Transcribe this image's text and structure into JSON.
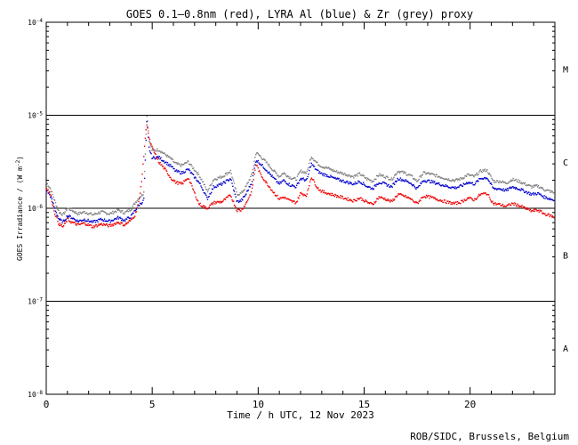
{
  "chart_data": {
    "type": "line",
    "title": "GOES 0.1—0.8nm (red), LYRA Al (blue) & Zr (grey) proxy",
    "xlabel": "Time / h UTC, 12 Nov 2023",
    "ylabel_main": "GOES Irradiance / (W m",
    "ylabel_exp": "-2",
    "ylabel_close": ")",
    "credit": "ROB/SIDC, Brussels, Belgium",
    "xlim": [
      0,
      24
    ],
    "ylim_log10": [
      -8,
      -4
    ],
    "y_scale": "log",
    "x_ticks": [
      {
        "v": 0,
        "label": "0"
      },
      {
        "v": 5,
        "label": "5"
      },
      {
        "v": 10,
        "label": "10"
      },
      {
        "v": 15,
        "label": "15"
      },
      {
        "v": 20,
        "label": "20"
      }
    ],
    "y_ticks": [
      {
        "exp": -4,
        "label": "10",
        "sup": "-4"
      },
      {
        "exp": -5,
        "label": "10",
        "sup": "-5"
      },
      {
        "exp": -6,
        "label": "10",
        "sup": "-6"
      },
      {
        "exp": -7,
        "label": "10",
        "sup": "-7"
      },
      {
        "exp": -8,
        "label": "10",
        "sup": "-8"
      }
    ],
    "class_lines": [
      -5,
      -6,
      -7
    ],
    "flare_classes": [
      {
        "label": "M",
        "exp": -4.5
      },
      {
        "label": "C",
        "exp": -5.5
      },
      {
        "label": "B",
        "exp": -6.5
      },
      {
        "label": "A",
        "exp": -7.5
      }
    ],
    "series": [
      {
        "color": "#808080",
        "offset": 0.08,
        "x": [
          0,
          0.2,
          0.4,
          0.6,
          0.8,
          1.0,
          1.2,
          1.5,
          1.8,
          2.2,
          2.6,
          3.0,
          3.4,
          3.7,
          4.0,
          4.2,
          4.4,
          4.6,
          4.75,
          4.85,
          5.0,
          5.3,
          5.6,
          5.9,
          6.1,
          6.4,
          6.7,
          6.9,
          7.2,
          7.4,
          7.6,
          7.9,
          8.3,
          8.7,
          9.0,
          9.2,
          9.4,
          9.7,
          9.9,
          10.1,
          10.4,
          10.7,
          11.0,
          11.2,
          11.5,
          11.8,
          12.0,
          12.3,
          12.5,
          12.8,
          13.0,
          13.3,
          13.6,
          13.9,
          14.2,
          14.5,
          14.8,
          15.1,
          15.4,
          15.7,
          16.0,
          16.3,
          16.6,
          16.9,
          17.2,
          17.5,
          17.8,
          18.1,
          18.4,
          18.7,
          19.0,
          19.3,
          19.6,
          19.9,
          20.2,
          20.5,
          20.8,
          21.1,
          21.4,
          21.7,
          22.0,
          22.3,
          22.6,
          22.9,
          23.2,
          23.5,
          23.8,
          24.0
        ],
        "y": [
          -5.8,
          -5.87,
          -6.0,
          -6.12,
          -6.15,
          -6.08,
          -6.1,
          -6.14,
          -6.12,
          -6.15,
          -6.12,
          -6.14,
          -6.1,
          -6.13,
          -6.09,
          -6.02,
          -5.96,
          -5.92,
          -5.05,
          -5.35,
          -5.46,
          -5.45,
          -5.5,
          -5.55,
          -5.6,
          -5.62,
          -5.58,
          -5.64,
          -5.72,
          -5.8,
          -5.9,
          -5.77,
          -5.74,
          -5.68,
          -5.93,
          -5.92,
          -5.86,
          -5.72,
          -5.48,
          -5.52,
          -5.59,
          -5.67,
          -5.74,
          -5.7,
          -5.75,
          -5.77,
          -5.68,
          -5.7,
          -5.52,
          -5.6,
          -5.63,
          -5.65,
          -5.68,
          -5.7,
          -5.72,
          -5.74,
          -5.71,
          -5.76,
          -5.79,
          -5.72,
          -5.74,
          -5.77,
          -5.68,
          -5.7,
          -5.73,
          -5.79,
          -5.7,
          -5.71,
          -5.73,
          -5.75,
          -5.77,
          -5.78,
          -5.76,
          -5.72,
          -5.74,
          -5.68,
          -5.67,
          -5.79,
          -5.79,
          -5.81,
          -5.77,
          -5.79,
          -5.82,
          -5.85,
          -5.84,
          -5.88,
          -5.9,
          -5.92
        ]
      },
      {
        "color": "#0000cc",
        "offset": 0.0,
        "x": [
          0,
          0.2,
          0.4,
          0.6,
          0.8,
          1.0,
          1.2,
          1.5,
          1.8,
          2.2,
          2.6,
          3.0,
          3.4,
          3.7,
          4.0,
          4.2,
          4.4,
          4.6,
          4.75,
          4.85,
          5.0,
          5.3,
          5.6,
          5.9,
          6.1,
          6.4,
          6.7,
          6.9,
          7.2,
          7.4,
          7.6,
          7.9,
          8.3,
          8.7,
          9.0,
          9.2,
          9.4,
          9.7,
          9.9,
          10.1,
          10.4,
          10.7,
          11.0,
          11.2,
          11.5,
          11.8,
          12.0,
          12.3,
          12.5,
          12.8,
          13.0,
          13.3,
          13.6,
          13.9,
          14.2,
          14.5,
          14.8,
          15.1,
          15.4,
          15.7,
          16.0,
          16.3,
          16.6,
          16.9,
          17.2,
          17.5,
          17.8,
          18.1,
          18.4,
          18.7,
          19.0,
          19.3,
          19.6,
          19.9,
          20.2,
          20.5,
          20.8,
          21.1,
          21.4,
          21.7,
          22.0,
          22.3,
          22.6,
          22.9,
          23.2,
          23.5,
          23.8,
          24.0
        ],
        "y": [
          -5.8,
          -5.87,
          -6.0,
          -6.12,
          -6.15,
          -6.08,
          -6.1,
          -6.14,
          -6.12,
          -6.15,
          -6.12,
          -6.14,
          -6.1,
          -6.13,
          -6.09,
          -6.02,
          -5.96,
          -5.92,
          -5.05,
          -5.35,
          -5.46,
          -5.45,
          -5.5,
          -5.55,
          -5.6,
          -5.62,
          -5.58,
          -5.64,
          -5.72,
          -5.8,
          -5.9,
          -5.77,
          -5.74,
          -5.68,
          -5.93,
          -5.92,
          -5.86,
          -5.72,
          -5.48,
          -5.52,
          -5.59,
          -5.67,
          -5.74,
          -5.7,
          -5.75,
          -5.77,
          -5.68,
          -5.7,
          -5.52,
          -5.6,
          -5.63,
          -5.65,
          -5.68,
          -5.7,
          -5.72,
          -5.74,
          -5.71,
          -5.76,
          -5.79,
          -5.72,
          -5.74,
          -5.77,
          -5.68,
          -5.7,
          -5.73,
          -5.79,
          -5.7,
          -5.71,
          -5.73,
          -5.75,
          -5.77,
          -5.78,
          -5.76,
          -5.72,
          -5.74,
          -5.68,
          -5.67,
          -5.79,
          -5.79,
          -5.81,
          -5.77,
          -5.79,
          -5.82,
          -5.85,
          -5.84,
          -5.88,
          -5.9,
          -5.92
        ]
      },
      {
        "color": "#ee0000",
        "offset": 0.0,
        "x": [
          0,
          0.2,
          0.4,
          0.6,
          0.8,
          1.0,
          1.2,
          1.5,
          1.8,
          2.2,
          2.6,
          3.0,
          3.4,
          3.7,
          4.0,
          4.2,
          4.4,
          4.55,
          4.65,
          4.75,
          4.85,
          5.0,
          5.3,
          5.6,
          5.9,
          6.1,
          6.4,
          6.7,
          6.9,
          7.2,
          7.4,
          7.6,
          7.9,
          8.3,
          8.7,
          9.0,
          9.2,
          9.4,
          9.7,
          9.9,
          10.1,
          10.4,
          10.7,
          11.0,
          11.2,
          11.5,
          11.8,
          12.0,
          12.3,
          12.5,
          12.8,
          13.0,
          13.3,
          13.6,
          13.9,
          14.2,
          14.5,
          14.8,
          15.1,
          15.4,
          15.7,
          16.0,
          16.3,
          16.6,
          16.9,
          17.2,
          17.5,
          17.8,
          18.1,
          18.4,
          18.7,
          19.0,
          19.3,
          19.6,
          19.9,
          20.2,
          20.5,
          20.8,
          21.1,
          21.4,
          21.7,
          22.0,
          22.3,
          22.6,
          22.9,
          23.2,
          23.5,
          23.8,
          24.0
        ],
        "y": [
          -5.77,
          -5.85,
          -6.05,
          -6.17,
          -6.2,
          -6.12,
          -6.15,
          -6.18,
          -6.16,
          -6.2,
          -6.17,
          -6.19,
          -6.15,
          -6.18,
          -6.13,
          -6.07,
          -5.9,
          -5.6,
          -5.3,
          -5.08,
          -5.25,
          -5.35,
          -5.5,
          -5.58,
          -5.68,
          -5.72,
          -5.74,
          -5.67,
          -5.78,
          -5.95,
          -5.98,
          -6.0,
          -5.94,
          -5.93,
          -5.86,
          -6.02,
          -6.02,
          -5.96,
          -5.82,
          -5.52,
          -5.63,
          -5.73,
          -5.82,
          -5.9,
          -5.88,
          -5.92,
          -5.94,
          -5.84,
          -5.86,
          -5.66,
          -5.78,
          -5.82,
          -5.84,
          -5.86,
          -5.88,
          -5.9,
          -5.92,
          -5.89,
          -5.93,
          -5.96,
          -5.88,
          -5.9,
          -5.93,
          -5.85,
          -5.87,
          -5.9,
          -5.95,
          -5.87,
          -5.88,
          -5.9,
          -5.92,
          -5.94,
          -5.95,
          -5.93,
          -5.89,
          -5.91,
          -5.85,
          -5.84,
          -5.95,
          -5.96,
          -5.98,
          -5.95,
          -5.97,
          -6.0,
          -6.03,
          -6.02,
          -6.06,
          -6.08,
          -6.1
        ]
      }
    ]
  }
}
